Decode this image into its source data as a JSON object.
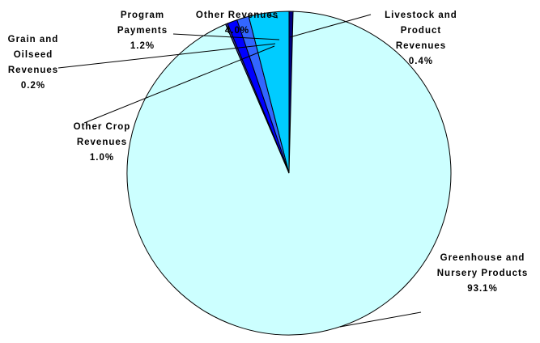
{
  "chart_data": {
    "type": "pie",
    "categories": [
      "Livestock and Product Revenues",
      "Greenhouse and Nursery Products",
      "Grain and Oilseed Revenues",
      "Other Crop Revenues",
      "Program Payments",
      "Other Revenues"
    ],
    "values": [
      0.4,
      93.1,
      0.2,
      1.0,
      1.2,
      4.0
    ],
    "value_labels": [
      "0.4%",
      "93.1%",
      "0.2%",
      "1.0%",
      "1.2%",
      "4.0%"
    ],
    "colors": [
      "#000080",
      "#ccffff",
      "#333399",
      "#0000ff",
      "#3366ff",
      "#00ccff"
    ]
  }
}
